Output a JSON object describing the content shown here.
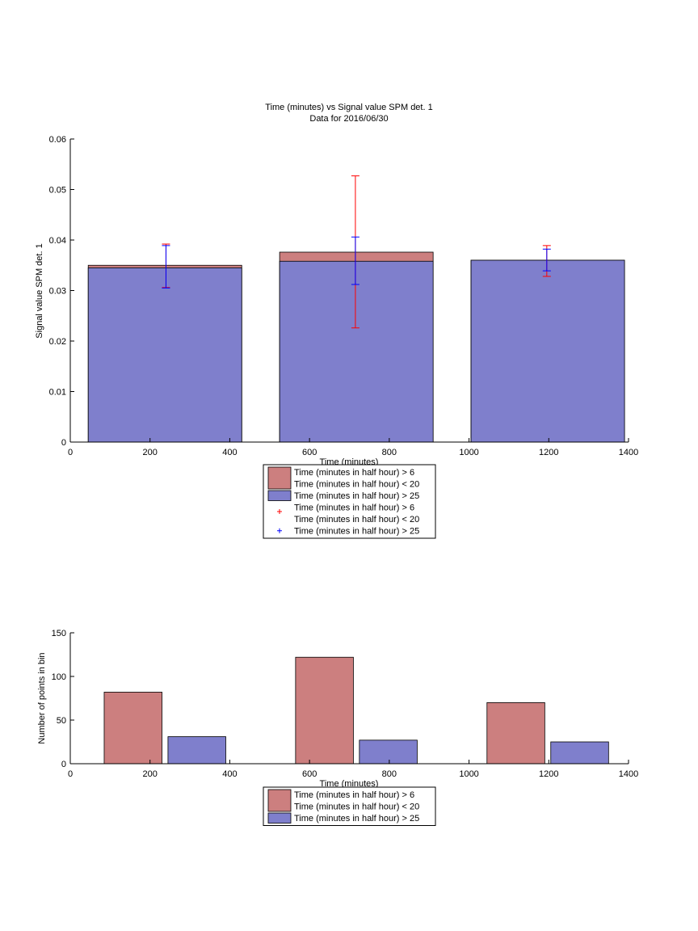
{
  "colors": {
    "red": "#cc7f7f",
    "blue": "#7f7fcc",
    "err_red": "#ff0000",
    "err_blue": "#0000ff"
  },
  "chart_data": [
    {
      "type": "bar",
      "title": "Time (minutes) vs Signal value SPM det. 1",
      "subtitle": "Data for 2016/06/30",
      "xlabel": "Time (minutes)",
      "ylabel": "Signal value SPM det. 1",
      "xlim": [
        0,
        1400
      ],
      "ylim": [
        0,
        0.06
      ],
      "xticks": [
        "0",
        "200",
        "400",
        "600",
        "800",
        "1000",
        "1200",
        "1400"
      ],
      "yticks": [
        "0",
        "0.01",
        "0.02",
        "0.03",
        "0.04",
        "0.05",
        "0.06"
      ],
      "bars": [
        {
          "x0": 45,
          "x1": 430,
          "value": 0.035,
          "series": "red"
        },
        {
          "x0": 45,
          "x1": 430,
          "value": 0.0345,
          "series": "blue"
        },
        {
          "x0": 525,
          "x1": 910,
          "value": 0.0376,
          "series": "red"
        },
        {
          "x0": 525,
          "x1": 910,
          "value": 0.0358,
          "series": "blue"
        },
        {
          "x0": 1005,
          "x1": 1390,
          "value": 0.036,
          "series": "red"
        },
        {
          "x0": 1005,
          "x1": 1390,
          "value": 0.036,
          "series": "blue"
        }
      ],
      "errorbars": [
        {
          "x": 240,
          "low": 0.0306,
          "high": 0.0392,
          "series": "red"
        },
        {
          "x": 240,
          "low": 0.0305,
          "high": 0.0389,
          "series": "blue"
        },
        {
          "x": 715,
          "low": 0.0226,
          "high": 0.0527,
          "series": "red"
        },
        {
          "x": 715,
          "low": 0.0312,
          "high": 0.0406,
          "series": "blue"
        },
        {
          "x": 1195,
          "low": 0.0328,
          "high": 0.0389,
          "series": "red"
        },
        {
          "x": 1195,
          "low": 0.0339,
          "high": 0.0382,
          "series": "blue"
        }
      ],
      "legend": [
        {
          "kind": "patch",
          "series": "red",
          "lines": [
            "Time (minutes in half hour) > 6",
            "Time (minutes in half hour) < 20"
          ]
        },
        {
          "kind": "patch",
          "series": "blue",
          "lines": [
            "Time (minutes in half hour) > 25"
          ]
        },
        {
          "kind": "marker",
          "series": "err_red",
          "lines": [
            "Time (minutes in half hour) > 6",
            "Time (minutes in half hour) < 20"
          ]
        },
        {
          "kind": "marker",
          "series": "err_blue",
          "lines": [
            "Time (minutes in half hour) > 25"
          ]
        }
      ],
      "legend_placement": "below"
    },
    {
      "type": "bar",
      "title": "",
      "xlabel": "Time (minutes)",
      "ylabel": "Number of points in bin",
      "xlim": [
        0,
        1400
      ],
      "ylim": [
        0,
        150
      ],
      "xticks": [
        "0",
        "200",
        "400",
        "600",
        "800",
        "1000",
        "1200",
        "1400"
      ],
      "yticks": [
        "0",
        "50",
        "100",
        "150"
      ],
      "bars": [
        {
          "x0": 85,
          "x1": 230,
          "value": 82,
          "series": "red"
        },
        {
          "x0": 245,
          "x1": 390,
          "value": 31,
          "series": "blue"
        },
        {
          "x0": 565,
          "x1": 710,
          "value": 122,
          "series": "red"
        },
        {
          "x0": 725,
          "x1": 870,
          "value": 27,
          "series": "blue"
        },
        {
          "x0": 1045,
          "x1": 1190,
          "value": 70,
          "series": "red"
        },
        {
          "x0": 1205,
          "x1": 1350,
          "value": 25,
          "series": "blue"
        }
      ],
      "errorbars": [],
      "legend": [
        {
          "kind": "patch",
          "series": "red",
          "lines": [
            "Time (minutes in half hour) > 6",
            "Time (minutes in half hour) < 20"
          ]
        },
        {
          "kind": "patch",
          "series": "blue",
          "lines": [
            "Time (minutes in half hour) > 25"
          ]
        }
      ],
      "legend_placement": "below"
    }
  ]
}
